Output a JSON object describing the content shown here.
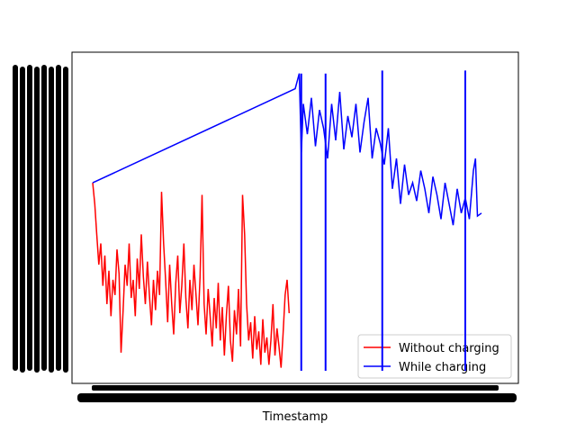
{
  "chart_data": {
    "type": "line",
    "title": "",
    "xlabel": "Timestamp",
    "ylabel": "",
    "grid": false,
    "legend_position": "lower-right",
    "x_ticks_readable": false,
    "y_ticks_readable": false,
    "series": [
      {
        "name": "Without charging",
        "color": "#ff0000",
        "points": [
          [
            0.0,
            0.62
          ],
          [
            0.005,
            0.55
          ],
          [
            0.01,
            0.45
          ],
          [
            0.015,
            0.35
          ],
          [
            0.02,
            0.42
          ],
          [
            0.025,
            0.28
          ],
          [
            0.03,
            0.38
          ],
          [
            0.035,
            0.22
          ],
          [
            0.04,
            0.33
          ],
          [
            0.045,
            0.18
          ],
          [
            0.05,
            0.3
          ],
          [
            0.055,
            0.25
          ],
          [
            0.06,
            0.4
          ],
          [
            0.065,
            0.32
          ],
          [
            0.07,
            0.06
          ],
          [
            0.075,
            0.2
          ],
          [
            0.08,
            0.35
          ],
          [
            0.085,
            0.28
          ],
          [
            0.09,
            0.42
          ],
          [
            0.095,
            0.24
          ],
          [
            0.1,
            0.3
          ],
          [
            0.105,
            0.18
          ],
          [
            0.11,
            0.37
          ],
          [
            0.115,
            0.27
          ],
          [
            0.12,
            0.45
          ],
          [
            0.125,
            0.31
          ],
          [
            0.13,
            0.22
          ],
          [
            0.135,
            0.36
          ],
          [
            0.14,
            0.25
          ],
          [
            0.145,
            0.15
          ],
          [
            0.15,
            0.3
          ],
          [
            0.155,
            0.2
          ],
          [
            0.16,
            0.33
          ],
          [
            0.165,
            0.25
          ],
          [
            0.17,
            0.59
          ],
          [
            0.175,
            0.42
          ],
          [
            0.18,
            0.3
          ],
          [
            0.185,
            0.16
          ],
          [
            0.19,
            0.35
          ],
          [
            0.195,
            0.22
          ],
          [
            0.2,
            0.12
          ],
          [
            0.205,
            0.29
          ],
          [
            0.21,
            0.38
          ],
          [
            0.215,
            0.19
          ],
          [
            0.22,
            0.28
          ],
          [
            0.225,
            0.42
          ],
          [
            0.23,
            0.24
          ],
          [
            0.235,
            0.14
          ],
          [
            0.24,
            0.3
          ],
          [
            0.245,
            0.2
          ],
          [
            0.25,
            0.35
          ],
          [
            0.255,
            0.25
          ],
          [
            0.26,
            0.15
          ],
          [
            0.265,
            0.31
          ],
          [
            0.27,
            0.58
          ],
          [
            0.275,
            0.22
          ],
          [
            0.28,
            0.12
          ],
          [
            0.285,
            0.27
          ],
          [
            0.29,
            0.18
          ],
          [
            0.295,
            0.08
          ],
          [
            0.3,
            0.24
          ],
          [
            0.305,
            0.14
          ],
          [
            0.31,
            0.29
          ],
          [
            0.315,
            0.1
          ],
          [
            0.32,
            0.21
          ],
          [
            0.325,
            0.05
          ],
          [
            0.33,
            0.18
          ],
          [
            0.335,
            0.28
          ],
          [
            0.34,
            0.1
          ],
          [
            0.345,
            0.03
          ],
          [
            0.35,
            0.2
          ],
          [
            0.355,
            0.12
          ],
          [
            0.36,
            0.27
          ],
          [
            0.365,
            0.08
          ],
          [
            0.37,
            0.58
          ],
          [
            0.375,
            0.45
          ],
          [
            0.38,
            0.22
          ],
          [
            0.385,
            0.1
          ],
          [
            0.39,
            0.16
          ],
          [
            0.395,
            0.04
          ],
          [
            0.4,
            0.18
          ],
          [
            0.405,
            0.07
          ],
          [
            0.41,
            0.13
          ],
          [
            0.415,
            0.02
          ],
          [
            0.42,
            0.17
          ],
          [
            0.425,
            0.06
          ],
          [
            0.43,
            0.11
          ],
          [
            0.435,
            0.02
          ],
          [
            0.44,
            0.1
          ],
          [
            0.445,
            0.22
          ],
          [
            0.45,
            0.05
          ],
          [
            0.455,
            0.14
          ],
          [
            0.46,
            0.08
          ],
          [
            0.465,
            0.01
          ],
          [
            0.47,
            0.12
          ],
          [
            0.475,
            0.25
          ],
          [
            0.48,
            0.3
          ],
          [
            0.485,
            0.19
          ]
        ]
      },
      {
        "name": "While charging",
        "color": "#0000ff",
        "points": [
          [
            0.0,
            0.62
          ],
          [
            0.5,
            0.93
          ],
          [
            0.51,
            0.98
          ],
          [
            0.515,
            0.72
          ],
          [
            0.52,
            0.88
          ],
          [
            0.53,
            0.78
          ],
          [
            0.54,
            0.9
          ],
          [
            0.55,
            0.74
          ],
          [
            0.56,
            0.86
          ],
          [
            0.57,
            0.8
          ],
          [
            0.58,
            0.7
          ],
          [
            0.59,
            0.88
          ],
          [
            0.6,
            0.76
          ],
          [
            0.61,
            0.92
          ],
          [
            0.62,
            0.73
          ],
          [
            0.63,
            0.84
          ],
          [
            0.64,
            0.77
          ],
          [
            0.65,
            0.88
          ],
          [
            0.66,
            0.72
          ],
          [
            0.67,
            0.82
          ],
          [
            0.68,
            0.9
          ],
          [
            0.69,
            0.7
          ],
          [
            0.7,
            0.8
          ],
          [
            0.71,
            0.75
          ],
          [
            0.72,
            0.68
          ],
          [
            0.73,
            0.8
          ],
          [
            0.74,
            0.6
          ],
          [
            0.75,
            0.7
          ],
          [
            0.76,
            0.55
          ],
          [
            0.77,
            0.68
          ],
          [
            0.78,
            0.58
          ],
          [
            0.79,
            0.62
          ],
          [
            0.8,
            0.56
          ],
          [
            0.81,
            0.66
          ],
          [
            0.82,
            0.6
          ],
          [
            0.83,
            0.52
          ],
          [
            0.84,
            0.64
          ],
          [
            0.85,
            0.58
          ],
          [
            0.86,
            0.5
          ],
          [
            0.87,
            0.62
          ],
          [
            0.88,
            0.55
          ],
          [
            0.89,
            0.48
          ],
          [
            0.9,
            0.6
          ],
          [
            0.91,
            0.52
          ],
          [
            0.92,
            0.57
          ],
          [
            0.93,
            0.5
          ],
          [
            0.94,
            0.66
          ],
          [
            0.945,
            0.7
          ],
          [
            0.95,
            0.51
          ],
          [
            0.96,
            0.52
          ]
        ]
      }
    ]
  }
}
